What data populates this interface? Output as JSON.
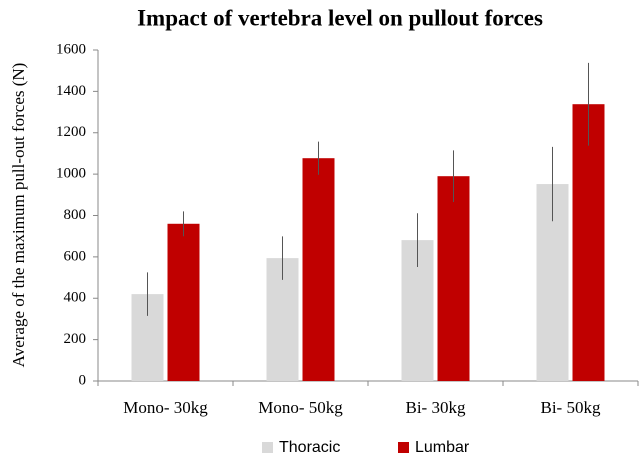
{
  "chart_data": {
    "type": "bar",
    "title": "Impact of vertebra level on pullout forces",
    "y_label": "Average of the maximum pull-out forces (N)",
    "categories": [
      "Mono- 30kg",
      "Mono- 50kg",
      "Bi- 30kg",
      "Bi- 50kg"
    ],
    "series": [
      {
        "name": "Thoracic",
        "color": "#d9d9d9",
        "values": [
          420,
          594,
          681,
          952
        ],
        "errors": [
          105,
          105,
          130,
          180
        ]
      },
      {
        "name": "Lumbar",
        "color": "#c00000",
        "values": [
          760,
          1077,
          990,
          1338
        ],
        "errors": [
          60,
          80,
          125,
          200
        ]
      }
    ],
    "ylim": [
      0,
      1600
    ],
    "yticks": [
      0,
      200,
      400,
      600,
      800,
      1000,
      1200,
      1400,
      1600
    ],
    "grid": false,
    "legend": "bottom"
  }
}
